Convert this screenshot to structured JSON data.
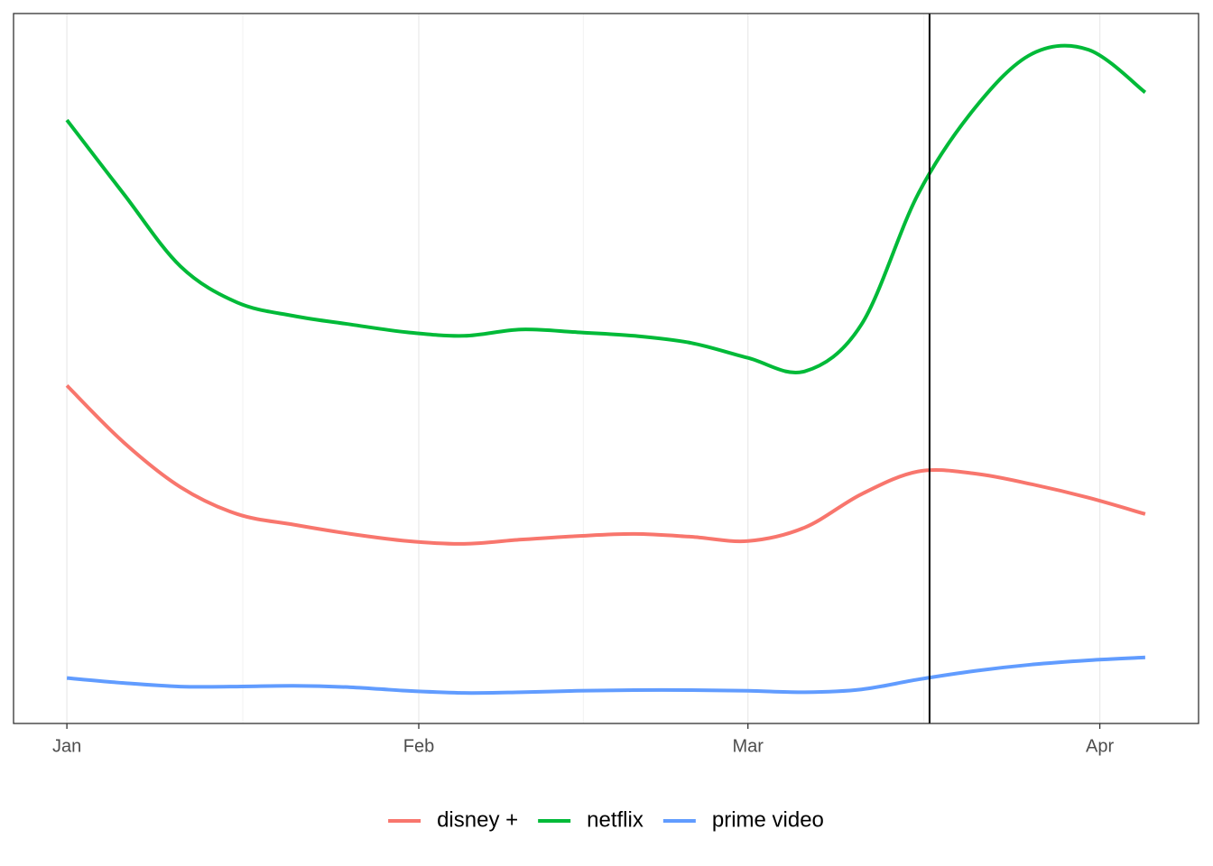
{
  "chart_data": {
    "type": "line",
    "x": [
      0,
      5,
      10,
      15,
      20,
      25,
      30,
      35,
      40,
      45,
      50,
      55,
      60,
      65,
      70,
      75,
      80,
      85,
      90,
      95
    ],
    "series": [
      {
        "name": "disney +",
        "color": "#F8766D",
        "values": [
          47.6,
          39.6,
          33.3,
          29.5,
          28.0,
          26.7,
          25.7,
          25.3,
          25.9,
          26.4,
          26.7,
          26.3,
          25.7,
          27.6,
          32.3,
          35.5,
          35.2,
          33.7,
          31.8,
          29.5
        ]
      },
      {
        "name": "netflix",
        "color": "#00BA38",
        "values": [
          85.0,
          74.6,
          64.4,
          59.3,
          57.4,
          56.2,
          55.1,
          54.6,
          55.5,
          55.1,
          54.6,
          53.6,
          51.5,
          49.6,
          56.2,
          74.6,
          86.7,
          94.3,
          94.9,
          88.9
        ]
      },
      {
        "name": "prime video",
        "color": "#619CFF",
        "values": [
          6.4,
          5.7,
          5.2,
          5.2,
          5.3,
          5.1,
          4.6,
          4.3,
          4.4,
          4.6,
          4.7,
          4.7,
          4.6,
          4.4,
          4.8,
          6.2,
          7.4,
          8.3,
          8.9,
          9.3
        ]
      }
    ],
    "xlim": [
      -4.7,
      99.7
    ],
    "xticks": [
      {
        "value": 0,
        "label": "Jan"
      },
      {
        "value": 31,
        "label": "Feb"
      },
      {
        "value": 60,
        "label": "Mar"
      },
      {
        "value": 91,
        "label": "Apr"
      }
    ],
    "ylim": [
      0,
      100
    ],
    "vline": 76,
    "grid": true,
    "legend": "bottom"
  }
}
